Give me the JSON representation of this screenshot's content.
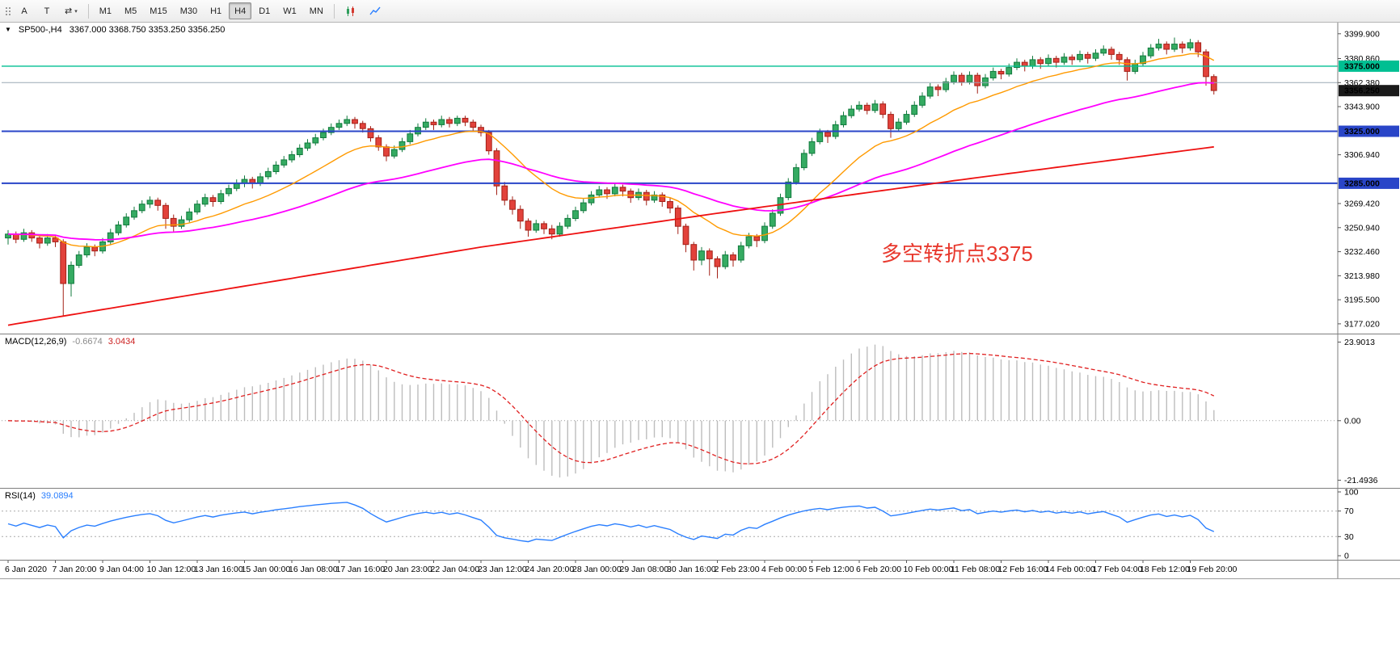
{
  "toolbar": {
    "tools": [
      {
        "label": "A",
        "name": "arrow-tool"
      },
      {
        "label": "T",
        "name": "text-tool"
      },
      {
        "glyph": "⇄",
        "caret": "▾",
        "name": "cursor-mode"
      }
    ],
    "timeframes": [
      {
        "label": "M1"
      },
      {
        "label": "M5"
      },
      {
        "label": "M15"
      },
      {
        "label": "M30"
      },
      {
        "label": "H1"
      },
      {
        "label": "H4",
        "active": true
      },
      {
        "label": "D1"
      },
      {
        "label": "W1"
      },
      {
        "label": "MN"
      }
    ]
  },
  "main_chart": {
    "collapse_glyph": "▼",
    "title_symbol": "SP500-,H4",
    "title_ohlc": "3367.000 3368.750 3353.250 3356.250",
    "annotation": {
      "text": "多空转折点3375",
      "color": "#e8392e"
    },
    "scale": {
      "min": 3172,
      "max": 3406
    },
    "axis_ticks": [
      "3399.900",
      "3380.860",
      "3362.380",
      "3343.900",
      "3306.940",
      "3269.420",
      "3250.940",
      "3232.460",
      "3213.980",
      "3195.500",
      "3177.020"
    ],
    "hlines": [
      {
        "price": 3375.0,
        "color": "#00bf92",
        "width": 1.4
      },
      {
        "price": 3362.4,
        "color": "#9aa8b6",
        "width": 1
      },
      {
        "price": 3325.0,
        "color": "#2945c8",
        "width": 2
      },
      {
        "price": 3285.0,
        "color": "#2945c8",
        "width": 2
      }
    ],
    "badges": [
      {
        "price": 3375.0,
        "label": "3375.000",
        "color": "#00bf92"
      },
      {
        "price": 3356.25,
        "label": "3356.250",
        "color": "#1a1a1a"
      },
      {
        "price": 3325.0,
        "label": "3325.000",
        "color": "#2945c8"
      },
      {
        "price": 3285.0,
        "label": "3285.000",
        "color": "#2945c8"
      }
    ]
  },
  "chart_data": {
    "type": "candlestick",
    "symbol": "SP500-",
    "period": "H4",
    "current_bar": {
      "open": 3367.0,
      "high": 3368.75,
      "low": 3353.25,
      "close": 3356.25
    },
    "key_levels": [
      3375.0,
      3325.0,
      3285.0
    ],
    "bull": {
      "fill": "#35ab62",
      "stroke": "#117a3d"
    },
    "bear": {
      "fill": "#e2423b",
      "stroke": "#a32017"
    },
    "overlays": {
      "ma_fast": {
        "type": "ema",
        "period": 16,
        "color": "#ff9a00",
        "width": 1.4
      },
      "ma_mid": {
        "type": "ema",
        "period": 48,
        "color": "#ff00ff",
        "width": 1.8
      },
      "ma_slow": {
        "type": "trend",
        "color": "#ee1111",
        "width": 1.8,
        "points": [
          [
            0,
            3176
          ],
          [
            30,
            3206
          ],
          [
            60,
            3236
          ],
          [
            90,
            3262
          ],
          [
            120,
            3287
          ],
          [
            153,
            3313
          ]
        ]
      }
    },
    "label_every": 6,
    "time_labels": [
      "6 Jan 2020",
      "7 Jan 20:00",
      "9 Jan 04:00",
      "10 Jan 12:00",
      "13 Jan 16:00",
      "15 Jan 00:00",
      "16 Jan 08:00",
      "17 Jan 16:00",
      "20 Jan 23:00",
      "22 Jan 04:00",
      "23 Jan 12:00",
      "24 Jan 20:00",
      "28 Jan 00:00",
      "29 Jan 08:00",
      "30 Jan 16:00",
      "2 Feb 23:00",
      "4 Feb 00:00",
      "5 Feb 12:00",
      "6 Feb 20:00",
      "10 Feb 00:00",
      "11 Feb 08:00",
      "12 Feb 16:00",
      "14 Feb 00:00",
      "17 Feb 04:00",
      "18 Feb 12:00",
      "19 Feb 20:00"
    ],
    "ohlc": [
      [
        3243,
        3249,
        3238,
        3246
      ],
      [
        3246,
        3248,
        3239,
        3242
      ],
      [
        3242,
        3250,
        3240,
        3247
      ],
      [
        3247,
        3249,
        3240,
        3243
      ],
      [
        3243,
        3245,
        3235,
        3239
      ],
      [
        3239,
        3246,
        3237,
        3243
      ],
      [
        3243,
        3245,
        3236,
        3240
      ],
      [
        3240,
        3242,
        3183,
        3208
      ],
      [
        3208,
        3225,
        3198,
        3222
      ],
      [
        3222,
        3233,
        3220,
        3230
      ],
      [
        3230,
        3239,
        3228,
        3236
      ],
      [
        3236,
        3238,
        3229,
        3233
      ],
      [
        3233,
        3243,
        3231,
        3240
      ],
      [
        3240,
        3250,
        3238,
        3247
      ],
      [
        3247,
        3256,
        3245,
        3253
      ],
      [
        3253,
        3262,
        3251,
        3259
      ],
      [
        3259,
        3267,
        3257,
        3264
      ],
      [
        3264,
        3272,
        3262,
        3269
      ],
      [
        3269,
        3275,
        3266,
        3272
      ],
      [
        3272,
        3274,
        3264,
        3268
      ],
      [
        3268,
        3270,
        3250,
        3258
      ],
      [
        3258,
        3261,
        3248,
        3252
      ],
      [
        3252,
        3260,
        3250,
        3257
      ],
      [
        3257,
        3266,
        3255,
        3263
      ],
      [
        3263,
        3272,
        3261,
        3269
      ],
      [
        3269,
        3277,
        3267,
        3274
      ],
      [
        3274,
        3276,
        3267,
        3271
      ],
      [
        3271,
        3280,
        3269,
        3277
      ],
      [
        3277,
        3284,
        3275,
        3281
      ],
      [
        3281,
        3288,
        3279,
        3285
      ],
      [
        3285,
        3291,
        3282,
        3288
      ],
      [
        3288,
        3290,
        3281,
        3285
      ],
      [
        3285,
        3293,
        3283,
        3290
      ],
      [
        3290,
        3297,
        3288,
        3294
      ],
      [
        3294,
        3302,
        3292,
        3299
      ],
      [
        3299,
        3306,
        3297,
        3303
      ],
      [
        3303,
        3310,
        3301,
        3307
      ],
      [
        3307,
        3315,
        3305,
        3312
      ],
      [
        3312,
        3319,
        3310,
        3316
      ],
      [
        3316,
        3323,
        3314,
        3320
      ],
      [
        3320,
        3327,
        3318,
        3324
      ],
      [
        3324,
        3331,
        3322,
        3328
      ],
      [
        3328,
        3334,
        3326,
        3331
      ],
      [
        3331,
        3337,
        3329,
        3334
      ],
      [
        3334,
        3336,
        3327,
        3331
      ],
      [
        3331,
        3333,
        3324,
        3327
      ],
      [
        3327,
        3329,
        3317,
        3320
      ],
      [
        3320,
        3322,
        3310,
        3313
      ],
      [
        3313,
        3315,
        3302,
        3306
      ],
      [
        3306,
        3314,
        3304,
        3311
      ],
      [
        3311,
        3320,
        3309,
        3317
      ],
      [
        3317,
        3326,
        3315,
        3323
      ],
      [
        3323,
        3331,
        3321,
        3328
      ],
      [
        3328,
        3335,
        3326,
        3332
      ],
      [
        3332,
        3334,
        3326,
        3330
      ],
      [
        3330,
        3337,
        3328,
        3334
      ],
      [
        3334,
        3336,
        3328,
        3331
      ],
      [
        3331,
        3337,
        3329,
        3335
      ],
      [
        3335,
        3337,
        3329,
        3332
      ],
      [
        3332,
        3334,
        3325,
        3328
      ],
      [
        3328,
        3330,
        3321,
        3324
      ],
      [
        3324,
        3326,
        3307,
        3310
      ],
      [
        3310,
        3312,
        3276,
        3283
      ],
      [
        3283,
        3286,
        3268,
        3272
      ],
      [
        3272,
        3275,
        3261,
        3265
      ],
      [
        3265,
        3268,
        3250,
        3256
      ],
      [
        3256,
        3258,
        3244,
        3249
      ],
      [
        3249,
        3257,
        3247,
        3254
      ],
      [
        3254,
        3256,
        3246,
        3250
      ],
      [
        3250,
        3253,
        3242,
        3246
      ],
      [
        3246,
        3255,
        3244,
        3252
      ],
      [
        3252,
        3261,
        3250,
        3258
      ],
      [
        3258,
        3267,
        3256,
        3264
      ],
      [
        3264,
        3273,
        3262,
        3270
      ],
      [
        3270,
        3279,
        3268,
        3276
      ],
      [
        3276,
        3283,
        3274,
        3280
      ],
      [
        3280,
        3282,
        3273,
        3277
      ],
      [
        3277,
        3285,
        3275,
        3282
      ],
      [
        3282,
        3284,
        3275,
        3279
      ],
      [
        3279,
        3281,
        3270,
        3274
      ],
      [
        3274,
        3281,
        3272,
        3278
      ],
      [
        3278,
        3280,
        3268,
        3272
      ],
      [
        3272,
        3279,
        3270,
        3276
      ],
      [
        3276,
        3278,
        3267,
        3271
      ],
      [
        3271,
        3274,
        3262,
        3266
      ],
      [
        3266,
        3268,
        3246,
        3252
      ],
      [
        3252,
        3254,
        3232,
        3238
      ],
      [
        3238,
        3240,
        3218,
        3226
      ],
      [
        3226,
        3236,
        3222,
        3233
      ],
      [
        3233,
        3235,
        3214,
        3227
      ],
      [
        3227,
        3229,
        3212,
        3221
      ],
      [
        3221,
        3233,
        3219,
        3230
      ],
      [
        3230,
        3232,
        3221,
        3226
      ],
      [
        3226,
        3240,
        3224,
        3237
      ],
      [
        3237,
        3247,
        3235,
        3244
      ],
      [
        3244,
        3246,
        3236,
        3241
      ],
      [
        3241,
        3255,
        3239,
        3252
      ],
      [
        3252,
        3265,
        3250,
        3262
      ],
      [
        3262,
        3277,
        3260,
        3274
      ],
      [
        3274,
        3289,
        3272,
        3286
      ],
      [
        3286,
        3300,
        3284,
        3297
      ],
      [
        3297,
        3311,
        3295,
        3308
      ],
      [
        3308,
        3320,
        3306,
        3317
      ],
      [
        3317,
        3327,
        3315,
        3324
      ],
      [
        3324,
        3326,
        3316,
        3321
      ],
      [
        3321,
        3333,
        3319,
        3330
      ],
      [
        3330,
        3340,
        3328,
        3337
      ],
      [
        3337,
        3345,
        3335,
        3342
      ],
      [
        3342,
        3348,
        3340,
        3345
      ],
      [
        3345,
        3347,
        3338,
        3341
      ],
      [
        3341,
        3349,
        3339,
        3346
      ],
      [
        3346,
        3348,
        3335,
        3338
      ],
      [
        3338,
        3340,
        3320,
        3327
      ],
      [
        3327,
        3335,
        3325,
        3332
      ],
      [
        3332,
        3341,
        3330,
        3338
      ],
      [
        3338,
        3348,
        3336,
        3345
      ],
      [
        3345,
        3355,
        3343,
        3352
      ],
      [
        3352,
        3362,
        3350,
        3359
      ],
      [
        3359,
        3361,
        3352,
        3357
      ],
      [
        3357,
        3366,
        3355,
        3363
      ],
      [
        3363,
        3371,
        3361,
        3368
      ],
      [
        3368,
        3370,
        3360,
        3363
      ],
      [
        3363,
        3371,
        3361,
        3368
      ],
      [
        3368,
        3370,
        3354,
        3360
      ],
      [
        3360,
        3369,
        3358,
        3366
      ],
      [
        3366,
        3374,
        3364,
        3371
      ],
      [
        3371,
        3373,
        3365,
        3369
      ],
      [
        3369,
        3377,
        3367,
        3374
      ],
      [
        3374,
        3381,
        3372,
        3378
      ],
      [
        3378,
        3380,
        3371,
        3375
      ],
      [
        3375,
        3383,
        3373,
        3380
      ],
      [
        3380,
        3382,
        3373,
        3377
      ],
      [
        3377,
        3384,
        3375,
        3381
      ],
      [
        3381,
        3383,
        3374,
        3378
      ],
      [
        3378,
        3385,
        3376,
        3382
      ],
      [
        3382,
        3384,
        3376,
        3380
      ],
      [
        3380,
        3387,
        3378,
        3384
      ],
      [
        3384,
        3386,
        3377,
        3381
      ],
      [
        3381,
        3388,
        3379,
        3385
      ],
      [
        3385,
        3391,
        3383,
        3388
      ],
      [
        3388,
        3390,
        3380,
        3384
      ],
      [
        3384,
        3386,
        3376,
        3380
      ],
      [
        3380,
        3382,
        3364,
        3371
      ],
      [
        3371,
        3380,
        3369,
        3377
      ],
      [
        3377,
        3386,
        3375,
        3383
      ],
      [
        3383,
        3392,
        3381,
        3389
      ],
      [
        3389,
        3396,
        3387,
        3392
      ],
      [
        3392,
        3394,
        3384,
        3388
      ],
      [
        3388,
        3397,
        3386,
        3392
      ],
      [
        3392,
        3394,
        3385,
        3389
      ],
      [
        3389,
        3396,
        3387,
        3393
      ],
      [
        3393,
        3395,
        3382,
        3386
      ],
      [
        3386,
        3388,
        3360,
        3367
      ],
      [
        3367,
        3368.75,
        3353.25,
        3356.25
      ]
    ]
  },
  "macd_panel": {
    "label": "MACD(12,26,9)",
    "value1": "-0.6674",
    "value2": "3.0434",
    "fast": 12,
    "slow": 26,
    "signal": 9,
    "axis": [
      "23.9013",
      "0.00",
      "-21.4936"
    ],
    "hist_color": "#bdbdbd",
    "signal_color": "#e02020"
  },
  "rsi_panel": {
    "label": "RSI(14)",
    "value": "39.0894",
    "period": 14,
    "axis": [
      "100",
      "70",
      "30",
      "0"
    ],
    "levels": [
      70,
      30
    ],
    "line_color": "#2a7fff"
  }
}
